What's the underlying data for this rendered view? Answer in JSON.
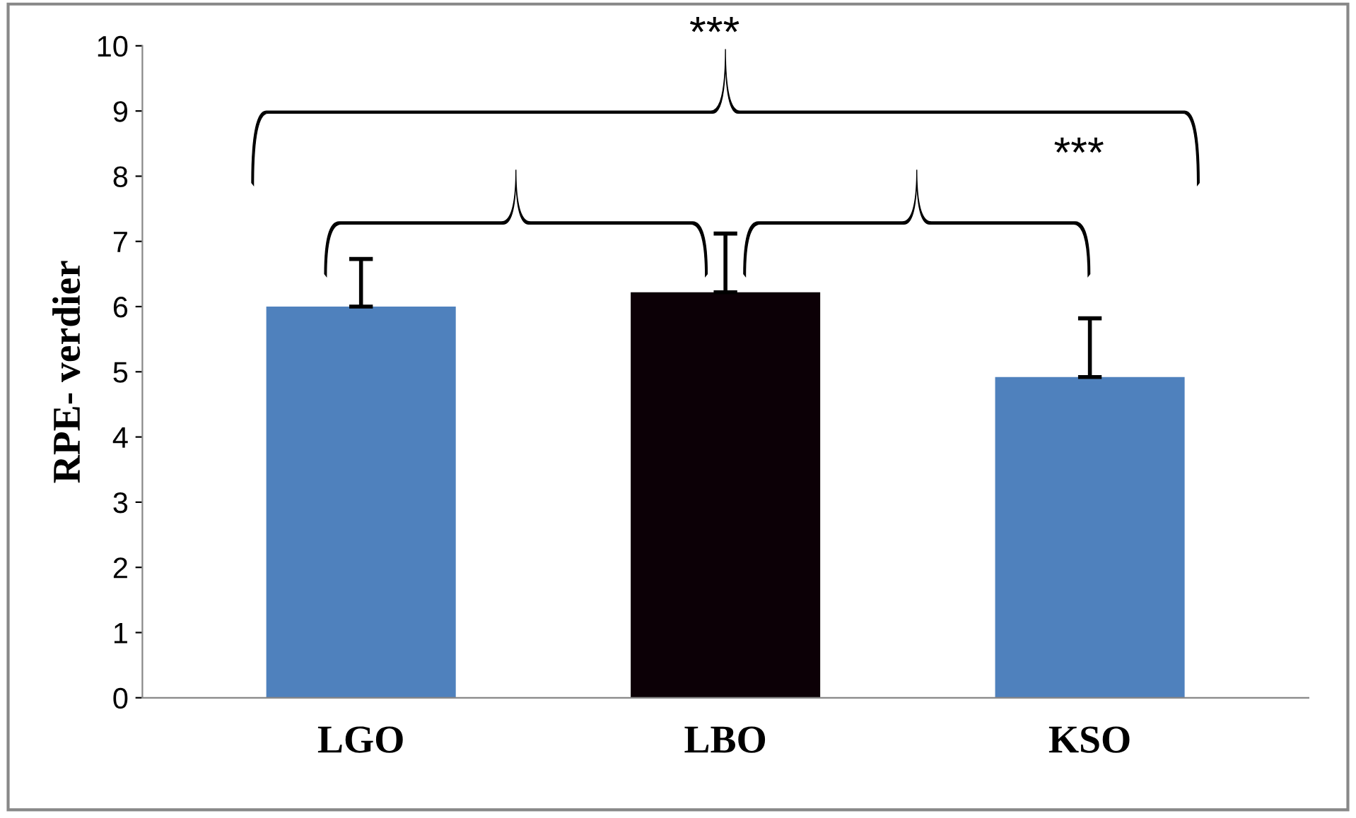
{
  "chart_data": {
    "type": "bar",
    "ylabel": "RPE- verdier",
    "categories": [
      "LGO",
      "LBO",
      "KSO"
    ],
    "values": [
      6.0,
      6.22,
      4.92
    ],
    "colors": [
      "#4f81bd",
      "#0c0006",
      "#4f81bd"
    ],
    "errors": [
      [
        6.0,
        6.73
      ],
      [
        6.22,
        7.12
      ],
      [
        4.92,
        5.82
      ]
    ],
    "ylim": [
      0,
      10
    ],
    "yticks": [
      0,
      1,
      2,
      3,
      4,
      5,
      6,
      7,
      8,
      9,
      10
    ],
    "grid": false,
    "annotations": [
      "***",
      "***"
    ]
  }
}
